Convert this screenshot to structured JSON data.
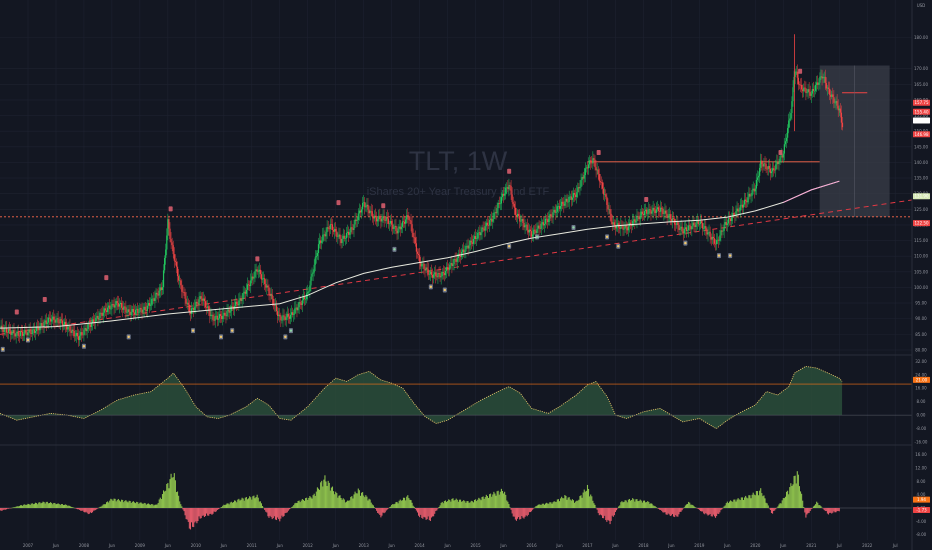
{
  "header": {
    "currency": "USD"
  },
  "watermark": {
    "title": "TLT, 1W",
    "subtitle": "iShares 20+ Year Treasury Bond ETF"
  },
  "colors": {
    "background": "#131722",
    "grid": "#1e2230",
    "candle_up": "#22c55e",
    "candle_down": "#ef4444",
    "ma_long": "#e9eadf",
    "ma_mid": "#f9a8d4",
    "trendline": "#e53944",
    "resistance": "#ff6a4d",
    "osc_fill_pos": "#2a4d3a",
    "osc_fill_neg": "#5a2a33",
    "hist_up": "#8cbf4c",
    "hist_down": "#e05a6a",
    "projection_box": "#3a3d48",
    "badge_gold": "#f3c869",
    "badge_green": "#8fd6a5",
    "badge_red": "#e06070",
    "badge_pink": "#f06292"
  },
  "chart_data": {
    "type": "candlestick",
    "title": "TLT, 1W",
    "subtitle": "iShares 20+ Year Treasury Bond ETF",
    "price_axis": {
      "ticks": [
        "180.00",
        "170.00",
        "165.00",
        "160.00",
        "155.00",
        "150.00",
        "145.00",
        "140.00",
        "135.00",
        "130.00",
        "125.00",
        "120.00",
        "115.00",
        "110.00",
        "105.00",
        "100.00",
        "95.00",
        "90.00",
        "85.00",
        "80.00"
      ],
      "ylim": [
        80,
        183
      ]
    },
    "price_badges": [
      {
        "label": "157.75",
        "value": 159.1,
        "color": "#ef4444"
      },
      {
        "label": "155.40",
        "value": 156.2,
        "color": "#ef4444"
      },
      {
        "label": "153.56",
        "value": 153.4,
        "color": "#ffffff"
      },
      {
        "label": "146.98",
        "value": 149.0,
        "color": "#ef4444"
      },
      {
        "label": "131.90",
        "value": 129.2,
        "color": "#d5e8b5"
      },
      {
        "label": "122.50",
        "value": 120.6,
        "color": "#ef4444"
      }
    ],
    "time_axis": [
      "2007",
      "Jun",
      "2008",
      "Jun",
      "2009",
      "Jun",
      "2010",
      "Jun",
      "2011",
      "Jun",
      "2012",
      "Jun",
      "2013",
      "Jun",
      "2014",
      "Jun",
      "2015",
      "Jun",
      "2016",
      "Jun",
      "2017",
      "Jun",
      "2018",
      "Jun",
      "2019",
      "Jun",
      "2020",
      "Jun",
      "2021",
      "Jul",
      "2022",
      "Jul"
    ],
    "time_axis_years": [
      2006.5,
      2007.0,
      2007.5,
      2008.0,
      2008.5,
      2009.0,
      2009.5,
      2010.0,
      2010.5,
      2011.0,
      2011.5,
      2012.0,
      2012.5,
      2013.0,
      2013.5,
      2014.0,
      2014.5,
      2015.0,
      2015.5,
      2016.0,
      2016.5,
      2017.0,
      2017.5,
      2018.0,
      2018.5,
      2019.0,
      2019.5,
      2020.0,
      2020.5,
      2021.0,
      2021.5,
      2022.0
    ],
    "x_range_years": [
      2006.0,
      2022.3
    ],
    "close_path": [
      [
        2006.0,
        87
      ],
      [
        2006.3,
        85
      ],
      [
        2006.6,
        86
      ],
      [
        2006.9,
        90
      ],
      [
        2007.1,
        89
      ],
      [
        2007.4,
        84
      ],
      [
        2007.6,
        88
      ],
      [
        2007.9,
        93
      ],
      [
        2008.1,
        95
      ],
      [
        2008.3,
        92
      ],
      [
        2008.6,
        93
      ],
      [
        2008.9,
        100
      ],
      [
        2009.0,
        121
      ],
      [
        2009.05,
        115
      ],
      [
        2009.2,
        102
      ],
      [
        2009.4,
        92
      ],
      [
        2009.6,
        97
      ],
      [
        2009.8,
        90
      ],
      [
        2010.0,
        91
      ],
      [
        2010.3,
        96
      ],
      [
        2010.6,
        106
      ],
      [
        2010.8,
        99
      ],
      [
        2011.0,
        90
      ],
      [
        2011.2,
        91
      ],
      [
        2011.5,
        98
      ],
      [
        2011.7,
        114
      ],
      [
        2011.9,
        120
      ],
      [
        2012.1,
        115
      ],
      [
        2012.3,
        119
      ],
      [
        2012.5,
        127
      ],
      [
        2012.7,
        122
      ],
      [
        2012.9,
        122
      ],
      [
        2013.1,
        118
      ],
      [
        2013.3,
        123
      ],
      [
        2013.5,
        108
      ],
      [
        2013.7,
        104
      ],
      [
        2013.9,
        104
      ],
      [
        2014.1,
        108
      ],
      [
        2014.5,
        116
      ],
      [
        2014.8,
        122
      ],
      [
        2015.0,
        130
      ],
      [
        2015.1,
        133
      ],
      [
        2015.2,
        124
      ],
      [
        2015.5,
        117
      ],
      [
        2015.8,
        122
      ],
      [
        2016.0,
        126
      ],
      [
        2016.3,
        130
      ],
      [
        2016.5,
        139
      ],
      [
        2016.6,
        141
      ],
      [
        2016.8,
        130
      ],
      [
        2016.95,
        120
      ],
      [
        2017.2,
        119
      ],
      [
        2017.5,
        124
      ],
      [
        2017.8,
        125
      ],
      [
        2018.0,
        122
      ],
      [
        2018.2,
        118
      ],
      [
        2018.5,
        121
      ],
      [
        2018.8,
        114
      ],
      [
        2018.95,
        120
      ],
      [
        2019.1,
        123
      ],
      [
        2019.3,
        127
      ],
      [
        2019.5,
        132
      ],
      [
        2019.6,
        140
      ],
      [
        2019.8,
        137
      ],
      [
        2020.0,
        143
      ],
      [
        2020.15,
        158
      ],
      [
        2020.2,
        170
      ],
      [
        2020.3,
        164
      ],
      [
        2020.5,
        162
      ],
      [
        2020.7,
        168
      ],
      [
        2020.8,
        163
      ],
      [
        2020.9,
        160
      ],
      [
        2021.0,
        157
      ],
      [
        2021.05,
        152
      ]
    ],
    "ma_long_path": [
      [
        2006.0,
        87.0
      ],
      [
        2007.0,
        87.5
      ],
      [
        2008.0,
        89.3
      ],
      [
        2009.0,
        91.5
      ],
      [
        2010.0,
        93.2
      ],
      [
        2011.0,
        94.8
      ],
      [
        2011.5,
        97.5
      ],
      [
        2012.0,
        101.5
      ],
      [
        2012.5,
        104.5
      ],
      [
        2013.0,
        106.5
      ],
      [
        2013.5,
        108.0
      ],
      [
        2014.0,
        109.5
      ],
      [
        2014.5,
        111.5
      ],
      [
        2015.0,
        113.8
      ],
      [
        2015.5,
        115.8
      ],
      [
        2016.0,
        117.2
      ],
      [
        2016.5,
        118.6
      ],
      [
        2017.0,
        119.7
      ],
      [
        2017.5,
        120.4
      ],
      [
        2018.0,
        121.0
      ],
      [
        2018.5,
        121.5
      ],
      [
        2019.0,
        122.5
      ],
      [
        2019.5,
        124.5
      ],
      [
        2020.0,
        127.2
      ],
      [
        2020.5,
        131.2
      ],
      [
        2021.0,
        134.0
      ]
    ],
    "trendline": {
      "points": [
        [
          2006.0,
          85.0
        ],
        [
          2022.3,
          128.0
        ]
      ]
    },
    "resistance": [
      {
        "value": 122.6,
        "x_start": 2006.0,
        "x_end": 2022.3
      },
      {
        "value": 140.2,
        "x_start": 2016.5,
        "x_end": 2020.65
      }
    ],
    "projection": {
      "x_start": 2020.65,
      "x_end": 2021.9,
      "y_top": 171,
      "y_bottom": 122.6,
      "target": 162.3
    },
    "oscillator": {
      "ticks": [
        "32.00",
        "24.00",
        "16.00",
        "8.00",
        "0.00",
        "-8.00",
        "-16.00"
      ],
      "ylim": [
        -16,
        34
      ],
      "badges": [
        {
          "label": "21.00",
          "value": 21.0,
          "color": "#f97316"
        }
      ],
      "level": 18.5,
      "values": [
        [
          2006.0,
          1
        ],
        [
          2006.3,
          -3
        ],
        [
          2006.6,
          -1
        ],
        [
          2006.9,
          1
        ],
        [
          2007.2,
          0
        ],
        [
          2007.5,
          -2
        ],
        [
          2007.8,
          3
        ],
        [
          2008.1,
          9
        ],
        [
          2008.4,
          12
        ],
        [
          2008.7,
          14
        ],
        [
          2009.0,
          22
        ],
        [
          2009.1,
          25
        ],
        [
          2009.3,
          16
        ],
        [
          2009.5,
          5
        ],
        [
          2009.7,
          -1
        ],
        [
          2009.9,
          -2
        ],
        [
          2010.1,
          0
        ],
        [
          2010.4,
          5
        ],
        [
          2010.6,
          10
        ],
        [
          2010.8,
          6
        ],
        [
          2011.0,
          -2
        ],
        [
          2011.2,
          -3
        ],
        [
          2011.5,
          5
        ],
        [
          2011.8,
          16
        ],
        [
          2012.0,
          22
        ],
        [
          2012.2,
          20
        ],
        [
          2012.4,
          24
        ],
        [
          2012.6,
          26
        ],
        [
          2012.8,
          21
        ],
        [
          2013.0,
          19
        ],
        [
          2013.2,
          16
        ],
        [
          2013.4,
          7
        ],
        [
          2013.6,
          -1
        ],
        [
          2013.8,
          -5
        ],
        [
          2014.0,
          -3
        ],
        [
          2014.3,
          3
        ],
        [
          2014.6,
          9
        ],
        [
          2014.9,
          14
        ],
        [
          2015.1,
          17
        ],
        [
          2015.3,
          13
        ],
        [
          2015.5,
          4
        ],
        [
          2015.8,
          1
        ],
        [
          2016.0,
          5
        ],
        [
          2016.3,
          12
        ],
        [
          2016.5,
          18
        ],
        [
          2016.65,
          20
        ],
        [
          2016.85,
          11
        ],
        [
          2017.0,
          0
        ],
        [
          2017.2,
          -2
        ],
        [
          2017.5,
          2
        ],
        [
          2017.8,
          4
        ],
        [
          2018.0,
          0
        ],
        [
          2018.2,
          -4
        ],
        [
          2018.5,
          -2
        ],
        [
          2018.8,
          -8
        ],
        [
          2019.0,
          -3
        ],
        [
          2019.2,
          1
        ],
        [
          2019.5,
          6
        ],
        [
          2019.7,
          14
        ],
        [
          2019.9,
          12
        ],
        [
          2020.1,
          17
        ],
        [
          2020.2,
          25
        ],
        [
          2020.4,
          29
        ],
        [
          2020.6,
          28
        ],
        [
          2020.8,
          25
        ],
        [
          2021.0,
          22
        ],
        [
          2021.05,
          20
        ]
      ]
    },
    "histogram": {
      "ticks": [
        "16.00",
        "12.00",
        "8.00",
        "4.00",
        "0.00",
        "-4.00",
        "-8.00"
      ],
      "ylim": [
        -9,
        18
      ],
      "badges": [
        {
          "label": "1.94",
          "value": 2.5,
          "color": "#f97316"
        },
        {
          "label": "-1.73",
          "value": -0.6,
          "color": "#ef4444"
        }
      ],
      "envelope": [
        [
          2006.0,
          -1
        ],
        [
          2006.4,
          1
        ],
        [
          2006.8,
          2
        ],
        [
          2007.2,
          1
        ],
        [
          2007.6,
          -2
        ],
        [
          2008.0,
          3
        ],
        [
          2008.4,
          2
        ],
        [
          2008.8,
          1
        ],
        [
          2009.0,
          8
        ],
        [
          2009.1,
          12
        ],
        [
          2009.2,
          3
        ],
        [
          2009.4,
          -7
        ],
        [
          2009.6,
          -3
        ],
        [
          2009.8,
          -2
        ],
        [
          2010.0,
          1
        ],
        [
          2010.3,
          3
        ],
        [
          2010.6,
          4
        ],
        [
          2010.8,
          -3
        ],
        [
          2011.0,
          -4
        ],
        [
          2011.3,
          2
        ],
        [
          2011.6,
          4
        ],
        [
          2011.8,
          10
        ],
        [
          2012.0,
          5
        ],
        [
          2012.2,
          2
        ],
        [
          2012.4,
          6
        ],
        [
          2012.6,
          3
        ],
        [
          2012.8,
          -3
        ],
        [
          2013.0,
          1
        ],
        [
          2013.3,
          4
        ],
        [
          2013.5,
          -3
        ],
        [
          2013.7,
          -4
        ],
        [
          2013.9,
          2
        ],
        [
          2014.1,
          3
        ],
        [
          2014.4,
          2
        ],
        [
          2014.7,
          4
        ],
        [
          2015.0,
          6
        ],
        [
          2015.2,
          -4
        ],
        [
          2015.4,
          -3
        ],
        [
          2015.6,
          1
        ],
        [
          2015.9,
          2
        ],
        [
          2016.1,
          4
        ],
        [
          2016.3,
          2
        ],
        [
          2016.5,
          7
        ],
        [
          2016.7,
          -2
        ],
        [
          2016.9,
          -5
        ],
        [
          2017.1,
          2
        ],
        [
          2017.3,
          3
        ],
        [
          2017.6,
          2
        ],
        [
          2017.9,
          -2
        ],
        [
          2018.1,
          -3
        ],
        [
          2018.3,
          2
        ],
        [
          2018.6,
          -2
        ],
        [
          2018.8,
          -3
        ],
        [
          2019.0,
          2
        ],
        [
          2019.2,
          3
        ],
        [
          2019.4,
          4
        ],
        [
          2019.6,
          6
        ],
        [
          2019.8,
          -2
        ],
        [
          2020.0,
          3
        ],
        [
          2020.15,
          8
        ],
        [
          2020.25,
          12
        ],
        [
          2020.4,
          -3
        ],
        [
          2020.6,
          2
        ],
        [
          2020.8,
          -2
        ],
        [
          2021.0,
          -1
        ]
      ]
    }
  },
  "badges_top": [
    {
      "year": 2006.3,
      "v": 92,
      "c": "red"
    },
    {
      "year": 2006.8,
      "v": 96,
      "c": "red"
    },
    {
      "year": 2007.9,
      "v": 103,
      "c": "red"
    },
    {
      "year": 2009.05,
      "v": 125,
      "c": "red"
    },
    {
      "year": 2010.6,
      "v": 109,
      "c": "red"
    },
    {
      "year": 2012.05,
      "v": 127,
      "c": "red"
    },
    {
      "year": 2012.85,
      "v": 126,
      "c": "red"
    },
    {
      "year": 2015.1,
      "v": 137,
      "c": "red"
    },
    {
      "year": 2016.7,
      "v": 143,
      "c": "red"
    },
    {
      "year": 2017.55,
      "v": 128,
      "c": "red"
    },
    {
      "year": 2019.95,
      "v": 143,
      "c": "red"
    },
    {
      "year": 2020.3,
      "v": 169,
      "c": "red"
    }
  ],
  "badges_bottom": [
    {
      "year": 2006.05,
      "v": 81,
      "c": "gold"
    },
    {
      "year": 2006.5,
      "v": 84,
      "c": "gold"
    },
    {
      "year": 2007.5,
      "v": 82,
      "c": "gold"
    },
    {
      "year": 2008.3,
      "v": 85,
      "c": "gold"
    },
    {
      "year": 2009.45,
      "v": 87,
      "c": "gold"
    },
    {
      "year": 2009.95,
      "v": 85,
      "c": "gold"
    },
    {
      "year": 2010.15,
      "v": 87,
      "c": "gold"
    },
    {
      "year": 2011.1,
      "v": 85,
      "c": "gold"
    },
    {
      "year": 2011.2,
      "v": 87,
      "c": "green"
    },
    {
      "year": 2013.05,
      "v": 113,
      "c": "green"
    },
    {
      "year": 2013.7,
      "v": 101,
      "c": "gold"
    },
    {
      "year": 2013.95,
      "v": 100,
      "c": "gold"
    },
    {
      "year": 2015.1,
      "v": 114,
      "c": "gold"
    },
    {
      "year": 2015.6,
      "v": 117,
      "c": "green"
    },
    {
      "year": 2016.25,
      "v": 120,
      "c": "green"
    },
    {
      "year": 2016.85,
      "v": 117,
      "c": "gold"
    },
    {
      "year": 2017.05,
      "v": 114,
      "c": "gold"
    },
    {
      "year": 2018.25,
      "v": 115,
      "c": "gold"
    },
    {
      "year": 2018.85,
      "v": 111,
      "c": "gold"
    },
    {
      "year": 2019.05,
      "v": 111,
      "c": "gold"
    }
  ]
}
